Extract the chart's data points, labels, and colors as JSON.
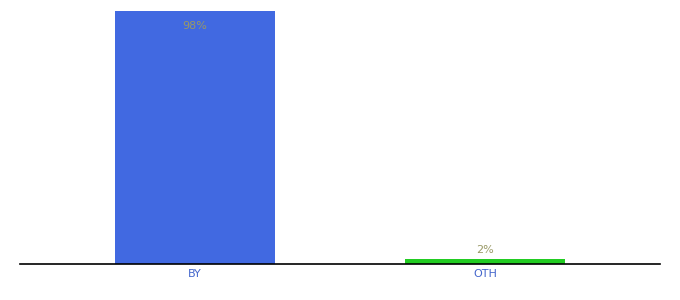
{
  "categories": [
    "BY",
    "OTH"
  ],
  "values": [
    98,
    2
  ],
  "bar_colors": [
    "#4169e1",
    "#22cc22"
  ],
  "label_texts": [
    "98%",
    "2%"
  ],
  "label_color": "#999966",
  "background_color": "#ffffff",
  "ylim": [
    0,
    100
  ],
  "label_fontsize": 8,
  "tick_fontsize": 8,
  "tick_color": "#4466cc",
  "bar_width": 0.55
}
